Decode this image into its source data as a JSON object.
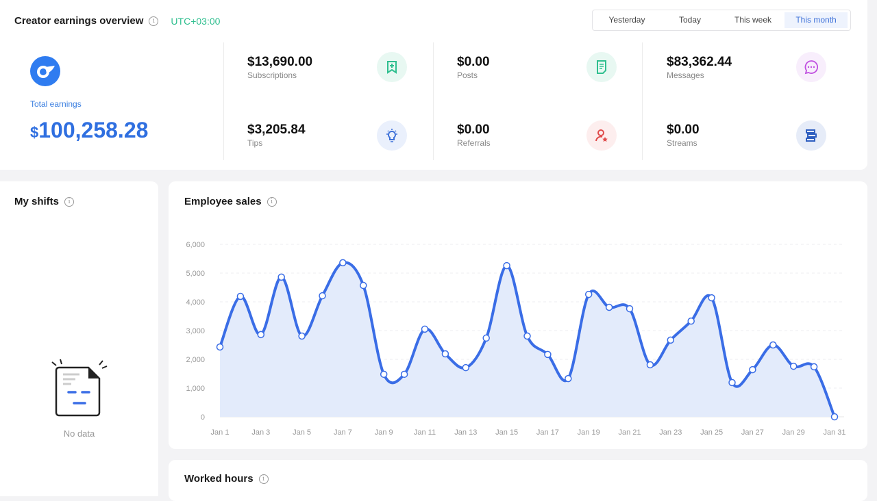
{
  "overview": {
    "title": "Creator earnings overview",
    "timezone": "UTC+03:00",
    "ranges": [
      "Yesterday",
      "Today",
      "This week",
      "This month"
    ],
    "active_range": "This month",
    "total_label": "Total earnings",
    "total_currency": "$",
    "total_value": "100,258.28",
    "stats": [
      {
        "value": "$13,690.00",
        "label": "Subscriptions",
        "icon": "bookmark-plus-icon",
        "color": "#2fbf8f",
        "bg": "#e8f8f2"
      },
      {
        "value": "$3,205.84",
        "label": "Tips",
        "icon": "lightbulb-icon",
        "color": "#3b6fd8",
        "bg": "#eaf0fc"
      },
      {
        "value": "$0.00",
        "label": "Posts",
        "icon": "document-icon",
        "color": "#2fbf8f",
        "bg": "#e8f8f2"
      },
      {
        "value": "$0.00",
        "label": "Referrals",
        "icon": "user-star-icon",
        "color": "#e04b4b",
        "bg": "#fdeeee"
      },
      {
        "value": "$83,362.44",
        "label": "Messages",
        "icon": "chat-bubble-icon",
        "color": "#c04ee0",
        "bg": "#f8eefc"
      },
      {
        "value": "$0.00",
        "label": "Streams",
        "icon": "streams-icon",
        "color": "#2f5fc0",
        "bg": "#e6ecf8"
      }
    ]
  },
  "shifts": {
    "title": "My shifts",
    "empty": "No data"
  },
  "sales": {
    "title": "Employee sales"
  },
  "hours": {
    "title": "Worked hours"
  },
  "chart_data": {
    "type": "area",
    "line_color": "#3a6de6",
    "fill_color": "#e3ebfb",
    "ylim": [
      0,
      6000
    ],
    "yticks": [
      "0",
      "1,000",
      "2,000",
      "3,000",
      "4,000",
      "5,000",
      "6,000"
    ],
    "xtick_labels": [
      "Jan 1",
      "Jan 3",
      "Jan 5",
      "Jan 7",
      "Jan 9",
      "Jan 11",
      "Jan 13",
      "Jan 15",
      "Jan 17",
      "Jan 19",
      "Jan 21",
      "Jan 23",
      "Jan 25",
      "Jan 27",
      "Jan 29",
      "Jan 31"
    ],
    "x": [
      "Jan 1",
      "Jan 2",
      "Jan 3",
      "Jan 4",
      "Jan 5",
      "Jan 6",
      "Jan 7",
      "Jan 8",
      "Jan 9",
      "Jan 10",
      "Jan 11",
      "Jan 12",
      "Jan 13",
      "Jan 14",
      "Jan 15",
      "Jan 16",
      "Jan 17",
      "Jan 18",
      "Jan 19",
      "Jan 20",
      "Jan 21",
      "Jan 22",
      "Jan 23",
      "Jan 24",
      "Jan 25",
      "Jan 26",
      "Jan 27",
      "Jan 28",
      "Jan 29",
      "Jan 30",
      "Jan 31"
    ],
    "values": [
      2430,
      4190,
      2860,
      4860,
      2810,
      4210,
      5360,
      4570,
      1480,
      1480,
      3050,
      2190,
      1710,
      2740,
      5260,
      2810,
      2170,
      1330,
      4260,
      3810,
      3760,
      1810,
      2670,
      3330,
      4140,
      1190,
      1640,
      2500,
      1760,
      1740,
      0
    ],
    "grid": true
  }
}
